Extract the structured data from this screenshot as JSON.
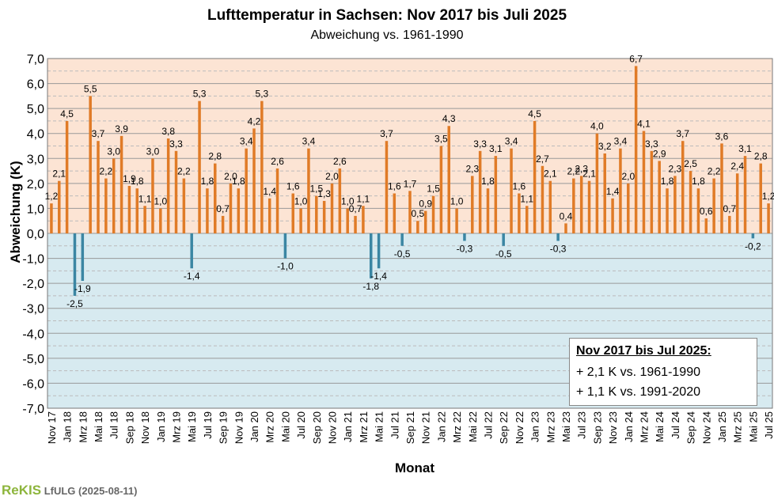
{
  "chart_data": {
    "type": "bar",
    "title": "Lufttemperatur in Sachsen: Nov 2017 bis Juli 2025",
    "subtitle": "Abweichung vs. 1961-1990",
    "xlabel": "Monat",
    "ylabel": "Abweichung (K)",
    "ylim": [
      -7,
      7
    ],
    "yticks": [
      "7,0",
      "6,0",
      "5,0",
      "4,0",
      "3,0",
      "2,0",
      "1,0",
      "0,0",
      "-1,0",
      "-2,0",
      "-3,0",
      "-4,0",
      "-5,0",
      "-6,0",
      "-7,0"
    ],
    "grid": true,
    "positive_color": "#e07b27",
    "negative_color": "#3b86a3",
    "background_warm": "#fce4d4",
    "background_cool": "#d7eaf0",
    "x_tick_labels": [
      "Nov 17",
      "Jan 18",
      "Mrz 18",
      "Mai 18",
      "Jul 18",
      "Sep 18",
      "Nov 18",
      "Jan 19",
      "Mrz 19",
      "Mai 19",
      "Jul 19",
      "Sep 19",
      "Nov 19",
      "Jan 20",
      "Mrz 20",
      "Mai 20",
      "Jul 20",
      "Sep 20",
      "Nov 20",
      "Jan 21",
      "Mrz 21",
      "Mai 21",
      "Jul 21",
      "Sep 21",
      "Nov 21",
      "Jan 22",
      "Mrz 22",
      "Mai 22",
      "Jul 22",
      "Sep 22",
      "Nov 22",
      "Jan 23",
      "Mrz 23",
      "Mai 23",
      "Jul 23",
      "Sep 23",
      "Nov 23",
      "Jan 24",
      "Mrz 24",
      "Mai 24",
      "Jul 24",
      "Sep 24",
      "Nov 24",
      "Jan 25",
      "Mrz 25",
      "Mai 25",
      "Jul 25"
    ],
    "values": [
      1.2,
      2.1,
      4.5,
      -2.5,
      -1.9,
      5.5,
      3.7,
      2.2,
      3.0,
      3.9,
      1.9,
      1.8,
      1.1,
      3.0,
      1.0,
      3.8,
      3.3,
      2.2,
      -1.4,
      5.3,
      1.8,
      2.8,
      0.7,
      2.0,
      1.8,
      3.4,
      4.2,
      5.3,
      1.4,
      2.6,
      -1.0,
      1.6,
      1.0,
      3.4,
      1.5,
      1.3,
      2.0,
      2.6,
      1.0,
      0.7,
      1.1,
      -1.8,
      -1.4,
      3.7,
      1.6,
      -0.5,
      1.7,
      0.5,
      0.9,
      1.5,
      3.5,
      4.3,
      1.0,
      -0.3,
      2.3,
      3.3,
      1.8,
      3.1,
      -0.5,
      3.4,
      1.6,
      1.1,
      4.5,
      2.7,
      2.1,
      -0.3,
      0.4,
      2.2,
      2.3,
      2.1,
      4.0,
      3.2,
      1.4,
      3.4,
      2.0,
      6.7,
      4.1,
      3.3,
      2.9,
      1.8,
      2.3,
      3.7,
      2.5,
      1.8,
      0.6,
      2.2,
      3.6,
      0.7,
      2.4,
      3.1,
      -0.2,
      2.8,
      1.2
    ],
    "labels": [
      "1,2",
      "2,1",
      "4,5",
      "-2,5",
      "-1,9",
      "5,5",
      "3,7",
      "2,2",
      "3,0",
      "3,9",
      "1,9",
      "1,8",
      "1,1",
      "3,0",
      "1,0",
      "3,8",
      "3,3",
      "2,2",
      "-1,4",
      "5,3",
      "1,8",
      "2,8",
      "0,7",
      "2,0",
      "1,8",
      "3,4",
      "4,2",
      "5,3",
      "1,4",
      "2,6",
      "-1,0",
      "1,6",
      "1,0",
      "3,4",
      "1,5",
      "1,3",
      "2,0",
      "2,6",
      "1,0",
      "0,7",
      "1,1",
      "-1,8",
      "-1,4",
      "3,7",
      "1,6",
      "-0,5",
      "1,7",
      "0,5",
      "0,9",
      "1,5",
      "3,5",
      "4,3",
      "1,0",
      "-0,3",
      "2,3",
      "3,3",
      "1,8",
      "3,1",
      "-0,5",
      "3,4",
      "1,6",
      "1,1",
      "4,5",
      "2,7",
      "2,1",
      "-0,3",
      "0,4",
      "2,2",
      "2,3",
      "2,1",
      "4,0",
      "3,2",
      "1,4",
      "3,4",
      "2,0",
      "6,7",
      "4,1",
      "3,3",
      "2,9",
      "1,8",
      "2,3",
      "3,7",
      "2,5",
      "1,8",
      "0,6",
      "2,2",
      "3,6",
      "0,7",
      "2,4",
      "3,1",
      "-0,2",
      "2,8",
      "1,2"
    ]
  },
  "info": {
    "heading": "Nov 2017 bis Jul 2025:",
    "line1": "+ 2,1 K vs. 1961-1990",
    "line2": "+ 1,1 K vs. 1991-2020"
  },
  "footer": {
    "logo": "ReKIS",
    "org": "LfULG",
    "date": "(2025-08-11)"
  }
}
